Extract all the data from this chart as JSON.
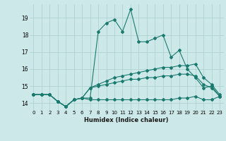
{
  "xlabel": "Humidex (Indice chaleur)",
  "x": [
    0,
    1,
    2,
    3,
    4,
    5,
    6,
    7,
    8,
    9,
    10,
    11,
    12,
    13,
    14,
    15,
    16,
    17,
    18,
    19,
    20,
    21,
    22,
    23
  ],
  "line1": [
    14.5,
    14.5,
    14.5,
    14.1,
    13.8,
    14.2,
    14.3,
    14.3,
    18.2,
    18.7,
    18.9,
    18.2,
    19.5,
    17.6,
    17.6,
    17.8,
    18.0,
    16.7,
    17.1,
    16.0,
    15.5,
    14.9,
    15.0,
    14.4
  ],
  "line2": [
    14.5,
    14.5,
    14.5,
    14.1,
    13.8,
    14.2,
    14.3,
    14.9,
    15.1,
    15.3,
    15.5,
    15.6,
    15.7,
    15.8,
    15.9,
    16.0,
    16.1,
    16.1,
    16.2,
    16.2,
    16.3,
    15.5,
    15.1,
    14.5
  ],
  "line3": [
    14.5,
    14.5,
    14.5,
    14.1,
    13.8,
    14.2,
    14.3,
    14.9,
    15.0,
    15.1,
    15.2,
    15.3,
    15.4,
    15.4,
    15.5,
    15.5,
    15.6,
    15.6,
    15.7,
    15.7,
    15.6,
    15.1,
    14.9,
    14.4
  ],
  "line4": [
    14.5,
    14.5,
    14.5,
    14.1,
    13.8,
    14.2,
    14.3,
    14.2,
    14.2,
    14.2,
    14.2,
    14.2,
    14.2,
    14.2,
    14.2,
    14.2,
    14.2,
    14.2,
    14.3,
    14.3,
    14.4,
    14.2,
    14.2,
    14.4
  ],
  "line_color": "#1a7a6e",
  "bg_color": "#cde8e8",
  "grid_color": "#aacece",
  "ylim": [
    13.6,
    19.8
  ],
  "yticks": [
    14,
    15,
    16,
    17,
    18,
    19
  ],
  "xticks": [
    0,
    1,
    2,
    3,
    4,
    5,
    6,
    7,
    8,
    9,
    10,
    11,
    12,
    13,
    14,
    15,
    16,
    17,
    18,
    19,
    20,
    21,
    22,
    23
  ]
}
